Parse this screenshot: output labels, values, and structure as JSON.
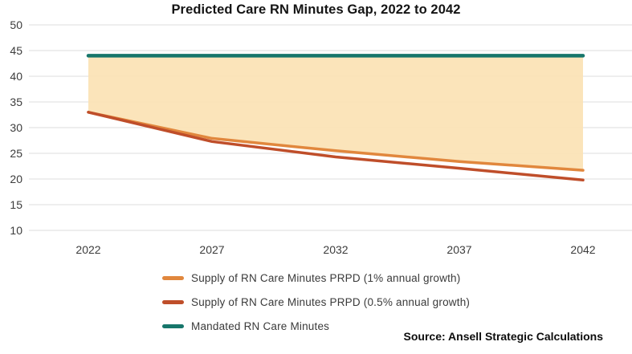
{
  "title": "Predicted Care RN Minutes Gap, 2022 to 2042",
  "source_note": "Source: Ansell Strategic Calculations",
  "colors": {
    "supply_1pct": "#e1873d",
    "supply_05pct": "#bf4e2a",
    "mandated": "#17766b",
    "gap_fill": "#fbe2b4",
    "grid": "#e3e3e3",
    "axis_text": "#3c3c3c",
    "title_text": "#141414"
  },
  "legend": {
    "items": [
      {
        "label": "Supply of RN Care Minutes PRPD (1% annual growth)",
        "color_key": "supply_1pct"
      },
      {
        "label": "Supply of RN Care Minutes PRPD (0.5% annual growth)",
        "color_key": "supply_05pct"
      },
      {
        "label": "Mandated RN Care Minutes",
        "color_key": "mandated"
      }
    ]
  },
  "chart_data": {
    "type": "line",
    "title": "Predicted Care RN Minutes Gap, 2022 to 2042",
    "x": [
      2022,
      2027,
      2032,
      2037,
      2042
    ],
    "series": [
      {
        "name": "Supply of RN Care Minutes PRPD (1% annual growth)",
        "color_key": "supply_1pct",
        "values": [
          33,
          27.9,
          25.5,
          23.4,
          21.7
        ]
      },
      {
        "name": "Supply of RN Care Minutes PRPD (0.5% annual growth)",
        "color_key": "supply_05pct",
        "values": [
          33,
          27.3,
          24.3,
          22.1,
          19.8
        ]
      },
      {
        "name": "Mandated RN Care Minutes",
        "color_key": "mandated",
        "values": [
          44,
          44,
          44,
          44,
          44
        ]
      }
    ],
    "fill_between": {
      "upper": "Mandated RN Care Minutes",
      "lower": "Supply of RN Care Minutes PRPD (1% annual growth)",
      "color_key": "gap_fill"
    },
    "ylim": [
      10,
      50
    ],
    "yticks": [
      10,
      15,
      20,
      25,
      30,
      35,
      40,
      45,
      50
    ],
    "xticks": [
      2022,
      2027,
      2032,
      2037,
      2042
    ],
    "grid": true,
    "legend_position": "bottom-left"
  }
}
